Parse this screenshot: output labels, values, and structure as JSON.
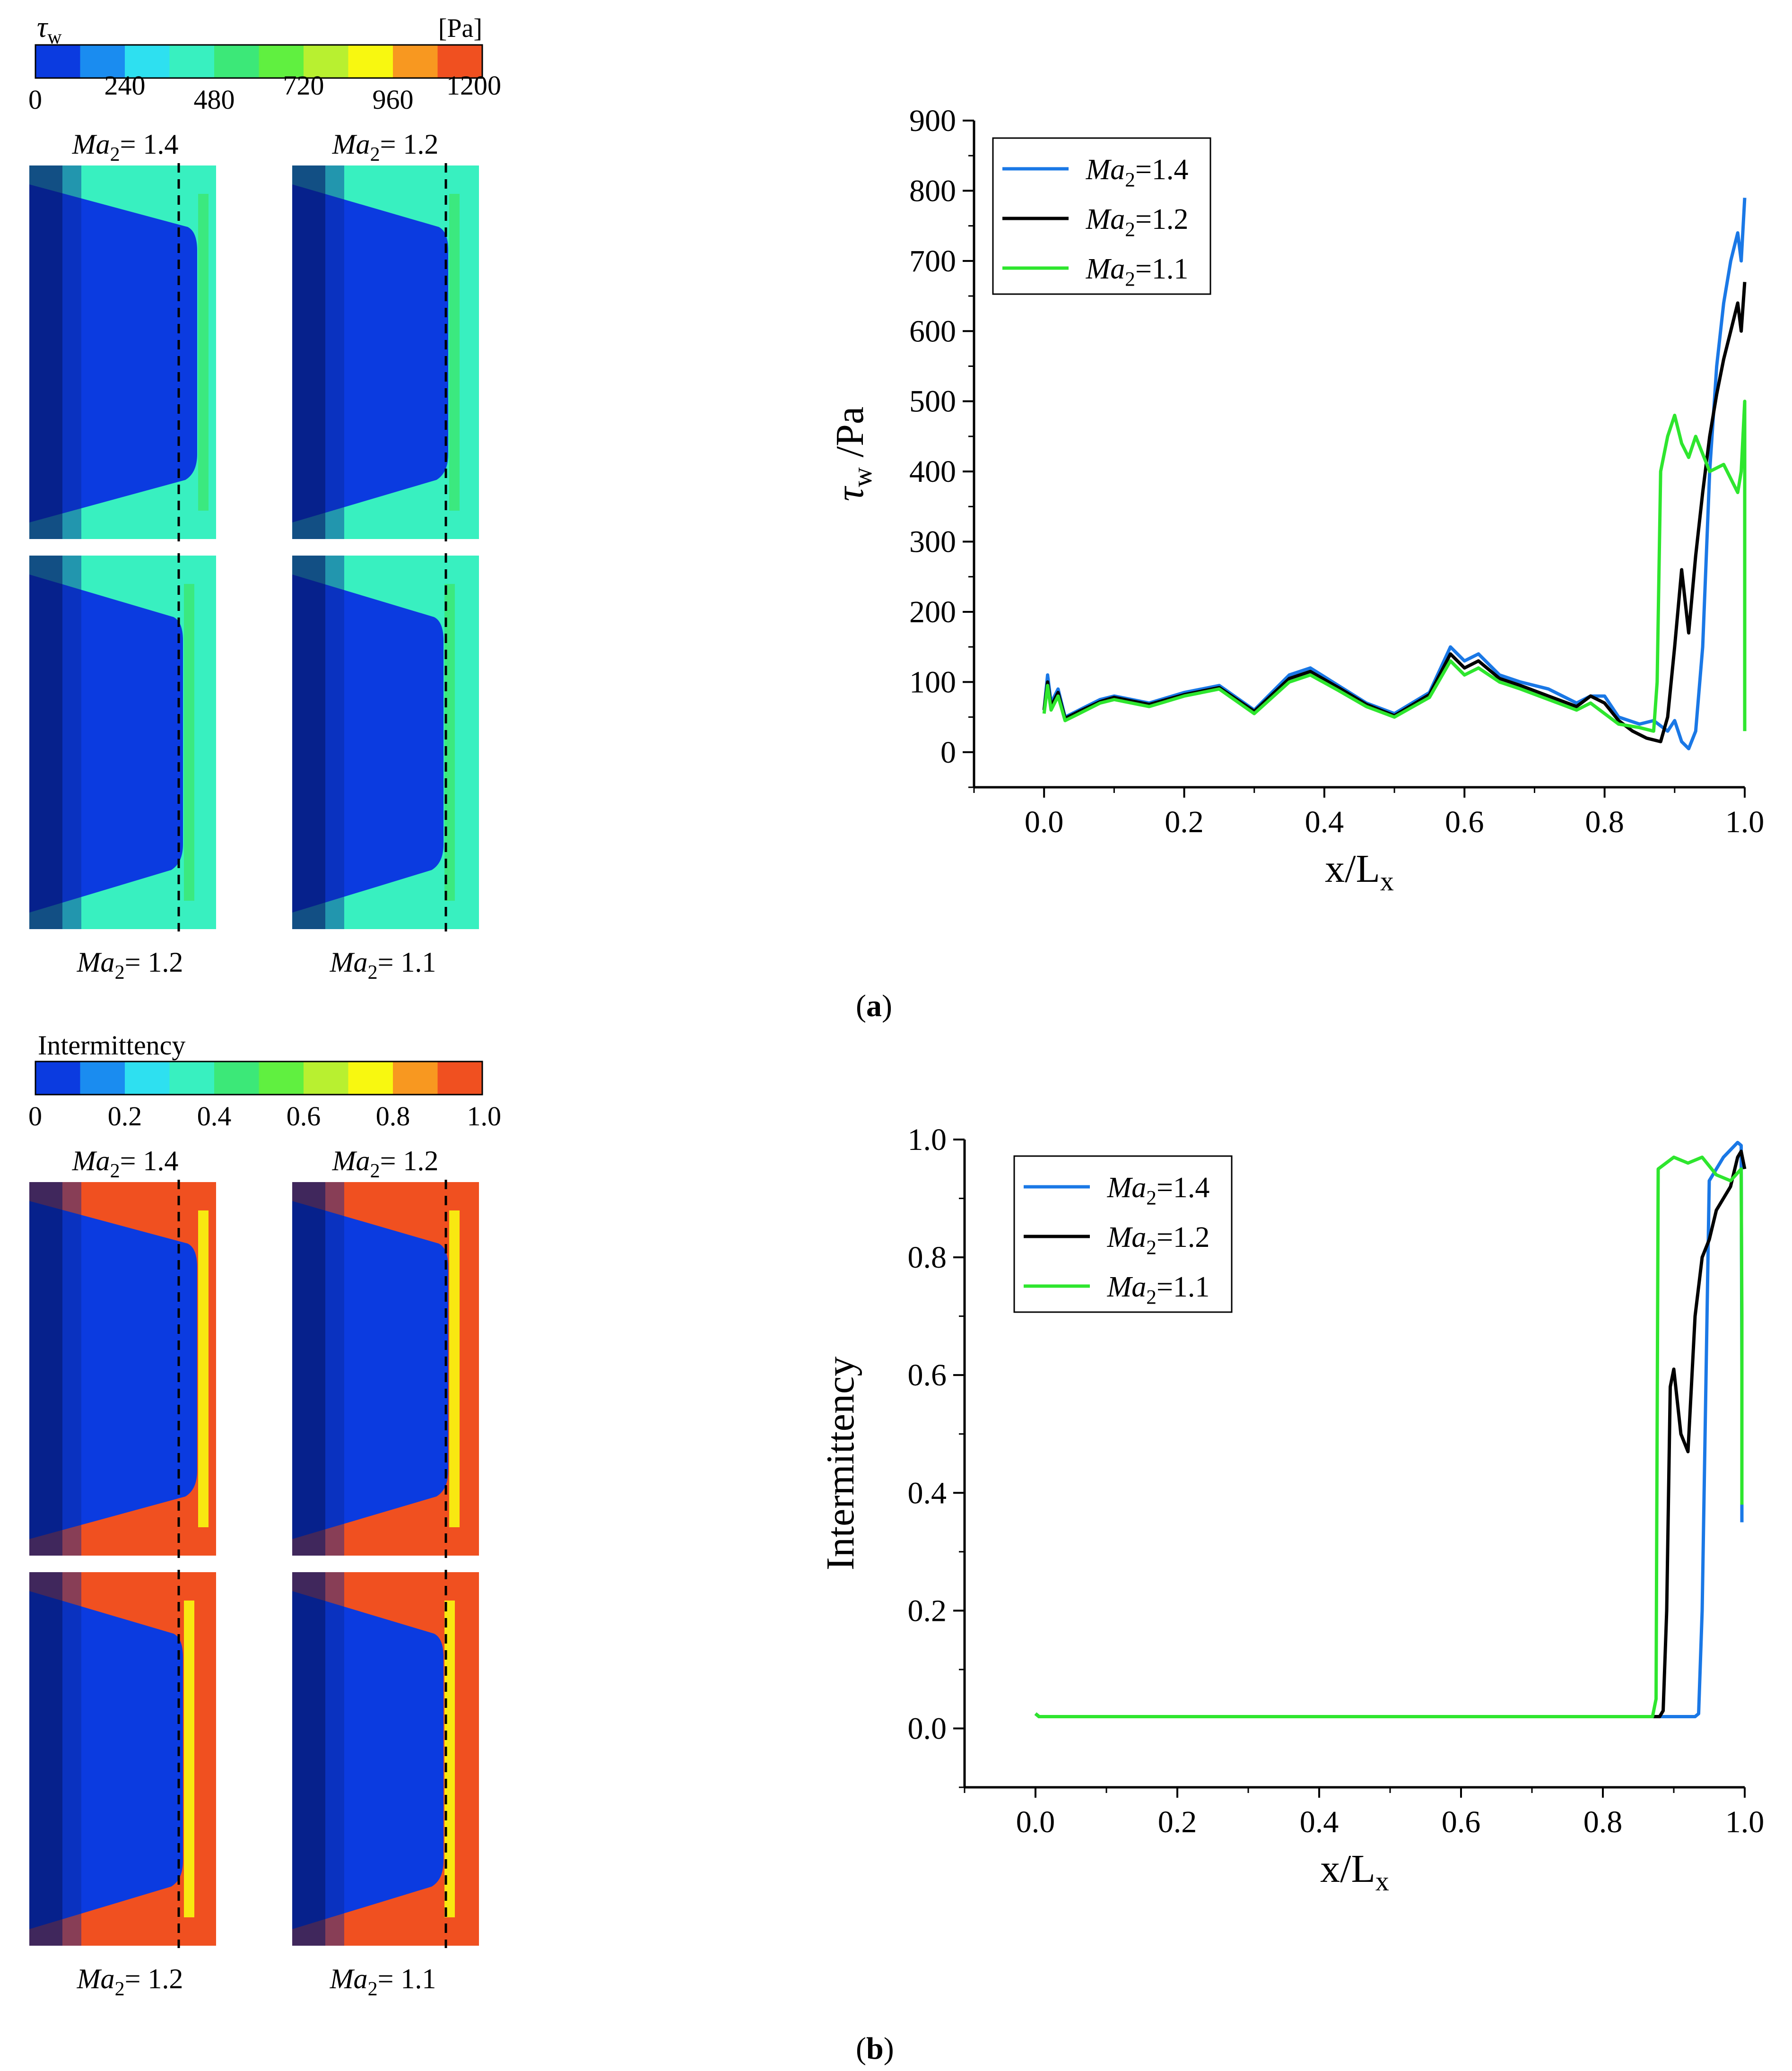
{
  "figure": {
    "panel_a_label": "a",
    "panel_b_label": "b"
  },
  "contours": {
    "shear": {
      "title": "τ",
      "title_sub": "w",
      "unit": "[Pa]",
      "ticks": [
        "0",
        "240",
        "480",
        "720",
        "960",
        "1200"
      ],
      "panel_labels": [
        "Ma2= 1.4",
        "Ma2= 1.2",
        "Ma2= 1.2",
        "Ma2= 1.1"
      ]
    },
    "intermittency": {
      "title": "Intermittency",
      "ticks": [
        "0",
        "0.2",
        "0.4",
        "0.6",
        "0.8",
        "1.0"
      ],
      "panel_labels": [
        "Ma2= 1.4",
        "Ma2= 1.2",
        "Ma2= 1.2",
        "Ma2= 1.1"
      ]
    },
    "colormap": [
      "#0b3be0",
      "#1a8cf0",
      "#2ee0f0",
      "#38f0c0",
      "#3ce878",
      "#60f040",
      "#b8f030",
      "#f8f810",
      "#f89820",
      "#f05020"
    ]
  },
  "colors": {
    "ma14": "#1a78e6",
    "ma12": "#000000",
    "ma11": "#2ee62e"
  },
  "chart_data": [
    {
      "type": "line",
      "id": "a",
      "xlabel": "x/L",
      "xlabel_sub": "x",
      "ylabel": "τ",
      "ylabel_sub": "w",
      "ylabel_unit": " /Pa",
      "xlim": [
        -0.1,
        1.0
      ],
      "ylim": [
        -50,
        900
      ],
      "xticks": [
        "0.0",
        "0.2",
        "0.4",
        "0.6",
        "0.8",
        "1.0"
      ],
      "yticks": [
        "0",
        "100",
        "200",
        "300",
        "400",
        "500",
        "600",
        "700",
        "800",
        "900"
      ],
      "legend": [
        "Ma2=1.4",
        "Ma2=1.2",
        "Ma2=1.1"
      ],
      "legend_position": "top-left",
      "series": [
        {
          "name": "Ma2=1.4",
          "x": [
            0,
            0.005,
            0.01,
            0.02,
            0.03,
            0.05,
            0.08,
            0.1,
            0.15,
            0.2,
            0.25,
            0.3,
            0.35,
            0.38,
            0.42,
            0.46,
            0.5,
            0.55,
            0.58,
            0.6,
            0.62,
            0.65,
            0.68,
            0.72,
            0.76,
            0.78,
            0.8,
            0.82,
            0.85,
            0.87,
            0.89,
            0.9,
            0.91,
            0.92,
            0.93,
            0.94,
            0.95,
            0.96,
            0.97,
            0.98,
            0.99,
            0.995,
            1.0
          ],
          "values": [
            60,
            110,
            70,
            90,
            50,
            60,
            75,
            80,
            70,
            85,
            95,
            60,
            110,
            120,
            95,
            70,
            55,
            85,
            150,
            130,
            140,
            110,
            100,
            90,
            70,
            80,
            80,
            50,
            40,
            45,
            30,
            45,
            15,
            5,
            30,
            150,
            400,
            550,
            640,
            700,
            740,
            700,
            790
          ]
        },
        {
          "name": "Ma2=1.2",
          "x": [
            0,
            0.005,
            0.01,
            0.02,
            0.03,
            0.05,
            0.08,
            0.1,
            0.15,
            0.2,
            0.25,
            0.3,
            0.35,
            0.38,
            0.42,
            0.46,
            0.5,
            0.55,
            0.58,
            0.6,
            0.62,
            0.65,
            0.68,
            0.72,
            0.76,
            0.78,
            0.8,
            0.82,
            0.84,
            0.86,
            0.88,
            0.89,
            0.9,
            0.91,
            0.92,
            0.93,
            0.94,
            0.95,
            0.96,
            0.97,
            0.98,
            0.99,
            0.995,
            1.0
          ],
          "values": [
            60,
            100,
            65,
            85,
            48,
            58,
            72,
            78,
            68,
            82,
            92,
            58,
            105,
            115,
            92,
            68,
            52,
            82,
            140,
            120,
            130,
            105,
            95,
            80,
            65,
            80,
            70,
            45,
            30,
            20,
            15,
            50,
            150,
            260,
            170,
            280,
            370,
            450,
            510,
            560,
            600,
            640,
            600,
            670
          ]
        },
        {
          "name": "Ma2=1.1",
          "x": [
            0,
            0.005,
            0.01,
            0.02,
            0.03,
            0.05,
            0.08,
            0.1,
            0.15,
            0.2,
            0.25,
            0.3,
            0.35,
            0.38,
            0.42,
            0.46,
            0.5,
            0.55,
            0.58,
            0.6,
            0.62,
            0.65,
            0.68,
            0.72,
            0.76,
            0.78,
            0.8,
            0.82,
            0.85,
            0.87,
            0.875,
            0.88,
            0.89,
            0.9,
            0.91,
            0.92,
            0.93,
            0.95,
            0.97,
            0.99,
            0.995,
            1.0,
            1.0
          ],
          "values": [
            55,
            95,
            60,
            80,
            45,
            55,
            70,
            75,
            65,
            80,
            90,
            55,
            100,
            110,
            88,
            65,
            50,
            78,
            130,
            110,
            120,
            100,
            90,
            75,
            60,
            70,
            55,
            40,
            35,
            30,
            100,
            400,
            450,
            480,
            440,
            420,
            450,
            400,
            410,
            370,
            400,
            500,
            30
          ]
        }
      ]
    },
    {
      "type": "line",
      "id": "b",
      "xlabel": "x/L",
      "xlabel_sub": "x",
      "ylabel": "Intermittency",
      "xlim": [
        -0.1,
        1.0
      ],
      "ylim": [
        -0.1,
        1.0
      ],
      "xticks": [
        "0.0",
        "0.2",
        "0.4",
        "0.6",
        "0.8",
        "1.0"
      ],
      "yticks": [
        "0.0",
        "0.2",
        "0.4",
        "0.6",
        "0.8",
        "1.0"
      ],
      "legend": [
        "Ma2=1.4",
        "Ma2=1.2",
        "Ma2=1.1"
      ],
      "legend_position": "top-left",
      "series": [
        {
          "name": "Ma2=1.4",
          "x": [
            0,
            0.005,
            0.93,
            0.935,
            0.94,
            0.95,
            0.97,
            0.99,
            0.995,
            0.996,
            0.996
          ],
          "values": [
            0.025,
            0.02,
            0.02,
            0.025,
            0.2,
            0.93,
            0.97,
            0.995,
            0.99,
            0.6,
            0.35
          ]
        },
        {
          "name": "Ma2=1.2",
          "x": [
            0,
            0.005,
            0.88,
            0.885,
            0.89,
            0.895,
            0.9,
            0.91,
            0.92,
            0.93,
            0.94,
            0.95,
            0.96,
            0.97,
            0.98,
            0.99,
            0.995,
            1.0
          ],
          "values": [
            0.025,
            0.02,
            0.02,
            0.03,
            0.2,
            0.58,
            0.61,
            0.5,
            0.47,
            0.7,
            0.8,
            0.83,
            0.88,
            0.9,
            0.92,
            0.97,
            0.98,
            0.95
          ]
        },
        {
          "name": "Ma2=1.1",
          "x": [
            0,
            0.005,
            0.87,
            0.875,
            0.878,
            0.9,
            0.92,
            0.94,
            0.96,
            0.98,
            0.995,
            0.996,
            0.996
          ],
          "values": [
            0.025,
            0.02,
            0.02,
            0.05,
            0.95,
            0.97,
            0.96,
            0.97,
            0.94,
            0.93,
            0.95,
            0.7,
            0.38
          ]
        }
      ]
    }
  ]
}
